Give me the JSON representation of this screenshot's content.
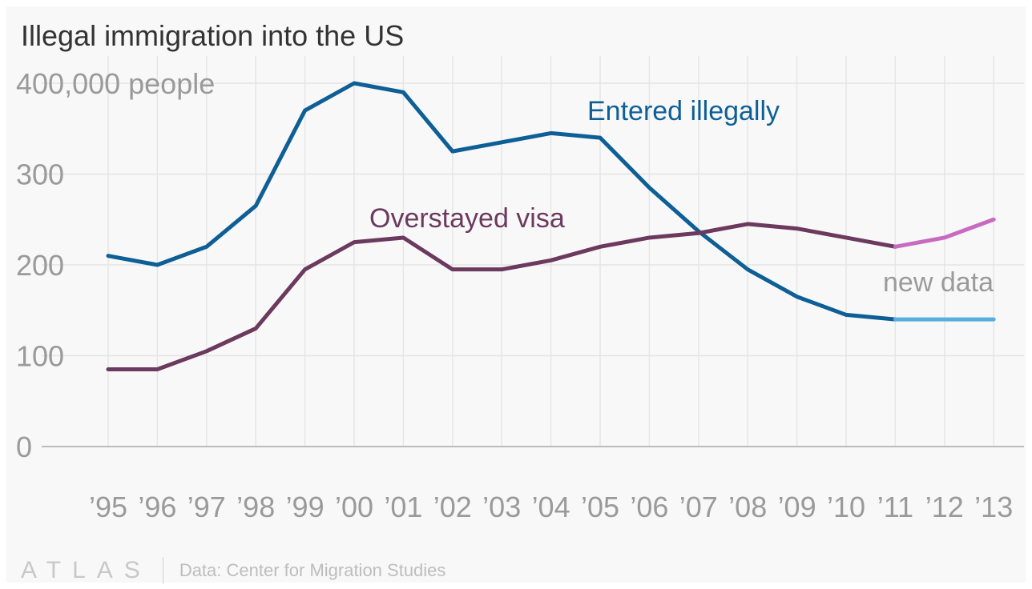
{
  "chart_data": {
    "type": "line",
    "title": "Illegal immigration into the US",
    "ylabel_unit": "400,000 people",
    "ylim": [
      0,
      400000
    ],
    "y_ticks": [
      {
        "value": 0,
        "label": "0"
      },
      {
        "value": 100000,
        "label": "100"
      },
      {
        "value": 200000,
        "label": "200"
      },
      {
        "value": 300000,
        "label": "300"
      }
    ],
    "categories": [
      "’95",
      "’96",
      "’97",
      "’98",
      "’99",
      "’00",
      "’01",
      "’02",
      "’03",
      "’04",
      "’05",
      "’06",
      "’07",
      "’08",
      "’09",
      "’10",
      "’11",
      "’12",
      "’13"
    ],
    "grid": true,
    "series": [
      {
        "name": "Entered illegally",
        "color": "#0e5f96",
        "new_data_color": "#5aaede",
        "values": [
          210000,
          200000,
          220000,
          265000,
          370000,
          400000,
          390000,
          325000,
          335000,
          345000,
          340000,
          285000,
          237000,
          195000,
          165000,
          145000,
          140000,
          140000,
          140000
        ]
      },
      {
        "name": "Overstayed visa",
        "color": "#6b3a5e",
        "new_data_color": "#c86bc0",
        "values": [
          85000,
          85000,
          105000,
          130000,
          195000,
          225000,
          230000,
          195000,
          195000,
          205000,
          220000,
          230000,
          235000,
          245000,
          240000,
          230000,
          220000,
          230000,
          250000
        ]
      }
    ],
    "new_data_start_index": 16,
    "annotations": {
      "new_data": "new data"
    }
  },
  "footer": {
    "logo": "ATLAS",
    "source": "Data: Center for Migration Studies"
  }
}
